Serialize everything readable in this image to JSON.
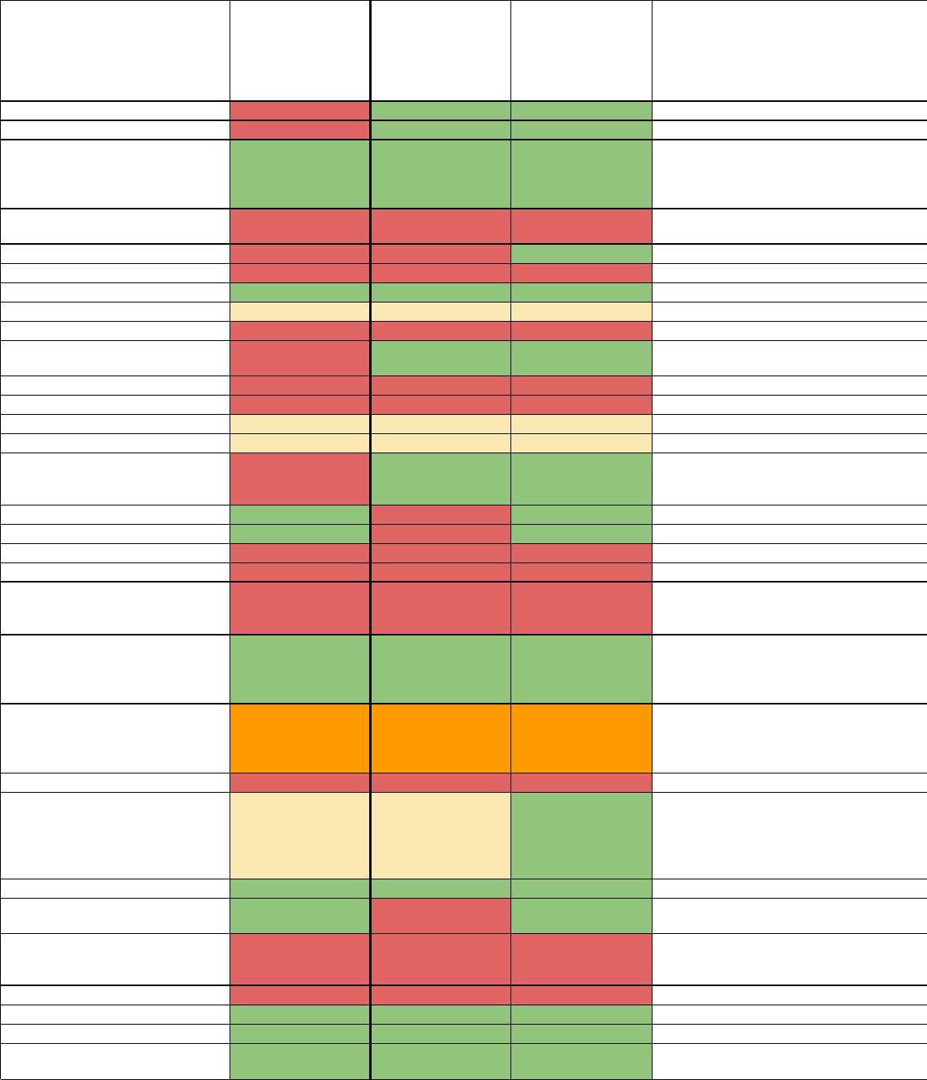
{
  "chart_data": {
    "type": "heatmap",
    "title": "",
    "columns": [
      "",
      "",
      "",
      "",
      ""
    ],
    "rows": [
      {
        "label": "",
        "values": [
          "red",
          "green",
          "green"
        ],
        "note": ""
      },
      {
        "label": "",
        "values": [
          "red",
          "green",
          "green"
        ],
        "note": ""
      },
      {
        "label": "",
        "values": [
          "green",
          "green",
          "green"
        ],
        "note": ""
      },
      {
        "label": "",
        "values": [
          "red",
          "red",
          "red"
        ],
        "note": ""
      },
      {
        "label": "",
        "values": [
          "red",
          "red",
          "green"
        ],
        "note": ""
      },
      {
        "label": "",
        "values": [
          "red",
          "red",
          "red"
        ],
        "note": ""
      },
      {
        "label": "",
        "values": [
          "green",
          "green",
          "green"
        ],
        "note": ""
      },
      {
        "label": "",
        "values": [
          "yellow",
          "yellow",
          "yellow"
        ],
        "note": ""
      },
      {
        "label": "",
        "values": [
          "red",
          "red",
          "red"
        ],
        "note": ""
      },
      {
        "label": "",
        "values": [
          "red",
          "green",
          "green"
        ],
        "note": ""
      },
      {
        "label": "",
        "values": [
          "red",
          "red",
          "red"
        ],
        "note": ""
      },
      {
        "label": "",
        "values": [
          "red",
          "red",
          "red"
        ],
        "note": ""
      },
      {
        "label": "",
        "values": [
          "yellow",
          "yellow",
          "yellow"
        ],
        "note": ""
      },
      {
        "label": "",
        "values": [
          "yellow",
          "yellow",
          "yellow"
        ],
        "note": ""
      },
      {
        "label": "",
        "values": [
          "red",
          "green",
          "green"
        ],
        "note": ""
      },
      {
        "label": "",
        "values": [
          "green",
          "red",
          "green"
        ],
        "note": ""
      },
      {
        "label": "",
        "values": [
          "green",
          "red",
          "green"
        ],
        "note": ""
      },
      {
        "label": "",
        "values": [
          "red",
          "red",
          "red"
        ],
        "note": ""
      },
      {
        "label": "",
        "values": [
          "red",
          "red",
          "red"
        ],
        "note": ""
      },
      {
        "label": "",
        "values": [
          "red",
          "red",
          "red"
        ],
        "note": ""
      },
      {
        "label": "",
        "values": [
          "green",
          "green",
          "green"
        ],
        "note": ""
      },
      {
        "label": "",
        "values": [
          "orange",
          "orange",
          "orange"
        ],
        "note": ""
      },
      {
        "label": "",
        "values": [
          "red",
          "red",
          "red"
        ],
        "note": ""
      },
      {
        "label": "",
        "values": [
          "yellow",
          "yellow",
          "green"
        ],
        "note": ""
      },
      {
        "label": "",
        "values": [
          "green",
          "green",
          "green"
        ],
        "note": ""
      },
      {
        "label": "",
        "values": [
          "green",
          "red",
          "green"
        ],
        "note": ""
      },
      {
        "label": "",
        "values": [
          "red",
          "red",
          "red"
        ],
        "note": ""
      },
      {
        "label": "",
        "values": [
          "red",
          "red",
          "red"
        ],
        "note": ""
      },
      {
        "label": "",
        "values": [
          "green",
          "green",
          "green"
        ],
        "note": ""
      },
      {
        "label": "",
        "values": [
          "green",
          "green",
          "green"
        ],
        "note": ""
      },
      {
        "label": "",
        "values": [
          "green",
          "green",
          "green"
        ],
        "note": ""
      }
    ],
    "colors": {
      "red": "#e06666",
      "green": "#93c47d",
      "yellow": "#fce8b2",
      "orange": "#ff9900",
      "white": "#ffffff",
      "border": "#000000"
    },
    "legend": "none",
    "grid": true
  }
}
